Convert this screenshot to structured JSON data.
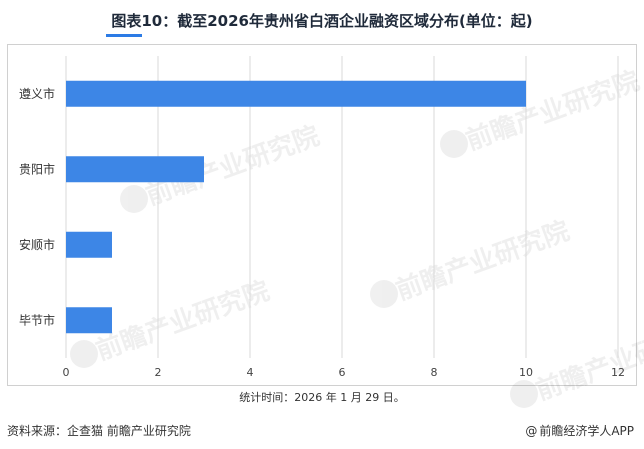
{
  "title": "图表10：截至2026年贵州省白酒企业融资区域分布(单位：起)",
  "note": "统计时间：2026 年 1 月 29 日。",
  "footer": {
    "source": "资料来源：企查猫 前瞻产业研究院",
    "brand_symbol": "@",
    "brand": "前瞻经济学人APP"
  },
  "watermark": "前瞻产业研究院",
  "colors": {
    "bar": "#3d86e6",
    "grid": "#d9d9d9",
    "title_rule": "#2c7be5"
  },
  "chart_data": {
    "type": "bar",
    "orientation": "horizontal",
    "categories": [
      "遵义市",
      "贵阳市",
      "安顺市",
      "毕节市"
    ],
    "values": [
      10,
      3,
      1,
      1
    ],
    "xlim": [
      0,
      12
    ],
    "xticks": [
      "0",
      "2",
      "4",
      "6",
      "8",
      "10",
      "12"
    ],
    "grid": "vertical",
    "legend": "none"
  }
}
